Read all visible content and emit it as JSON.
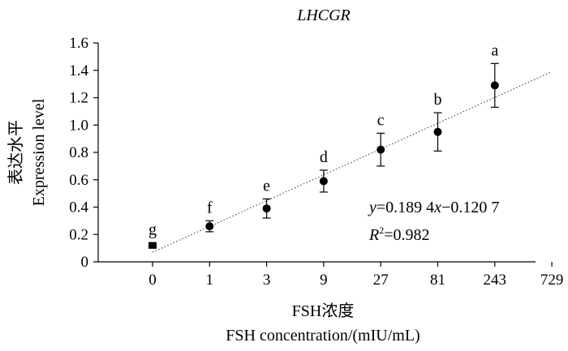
{
  "chart_data": {
    "type": "scatter",
    "title": "LHCGR",
    "xlabel_cn": "FSH浓度",
    "xlabel": "FSH concentration/(mIU/mL)",
    "ylabel_cn": "表达水平",
    "ylabel": "Expression level",
    "ylim": [
      0,
      1.6
    ],
    "yticks": [
      "0",
      "0.2",
      "0.4",
      "0.6",
      "0.8",
      "1.0",
      "1.2",
      "1.4",
      "1.6"
    ],
    "x_categories": [
      "0",
      "1",
      "3",
      "9",
      "27",
      "81",
      "243",
      "729"
    ],
    "points": [
      {
        "x": "0",
        "y": 0.12,
        "err": 0.02,
        "label": "g"
      },
      {
        "x": "1",
        "y": 0.26,
        "err": 0.04,
        "label": "f"
      },
      {
        "x": "3",
        "y": 0.39,
        "err": 0.07,
        "label": "e"
      },
      {
        "x": "9",
        "y": 0.59,
        "err": 0.08,
        "label": "d"
      },
      {
        "x": "27",
        "y": 0.82,
        "err": 0.12,
        "label": "c"
      },
      {
        "x": "81",
        "y": 0.95,
        "err": 0.14,
        "label": "b"
      },
      {
        "x": "243",
        "y": 1.29,
        "err": 0.16,
        "label": "a"
      }
    ],
    "trendline": {
      "style": "dotted",
      "y_start": 0.07,
      "y_end": 1.39
    },
    "equation": {
      "y": "y",
      "rhs": "=0.189 4",
      "x": "x",
      "tail": "−0.120 7"
    },
    "r2": {
      "R": "R",
      "sup": "2",
      "value": "=0.982"
    },
    "grid": false,
    "legend": false
  }
}
